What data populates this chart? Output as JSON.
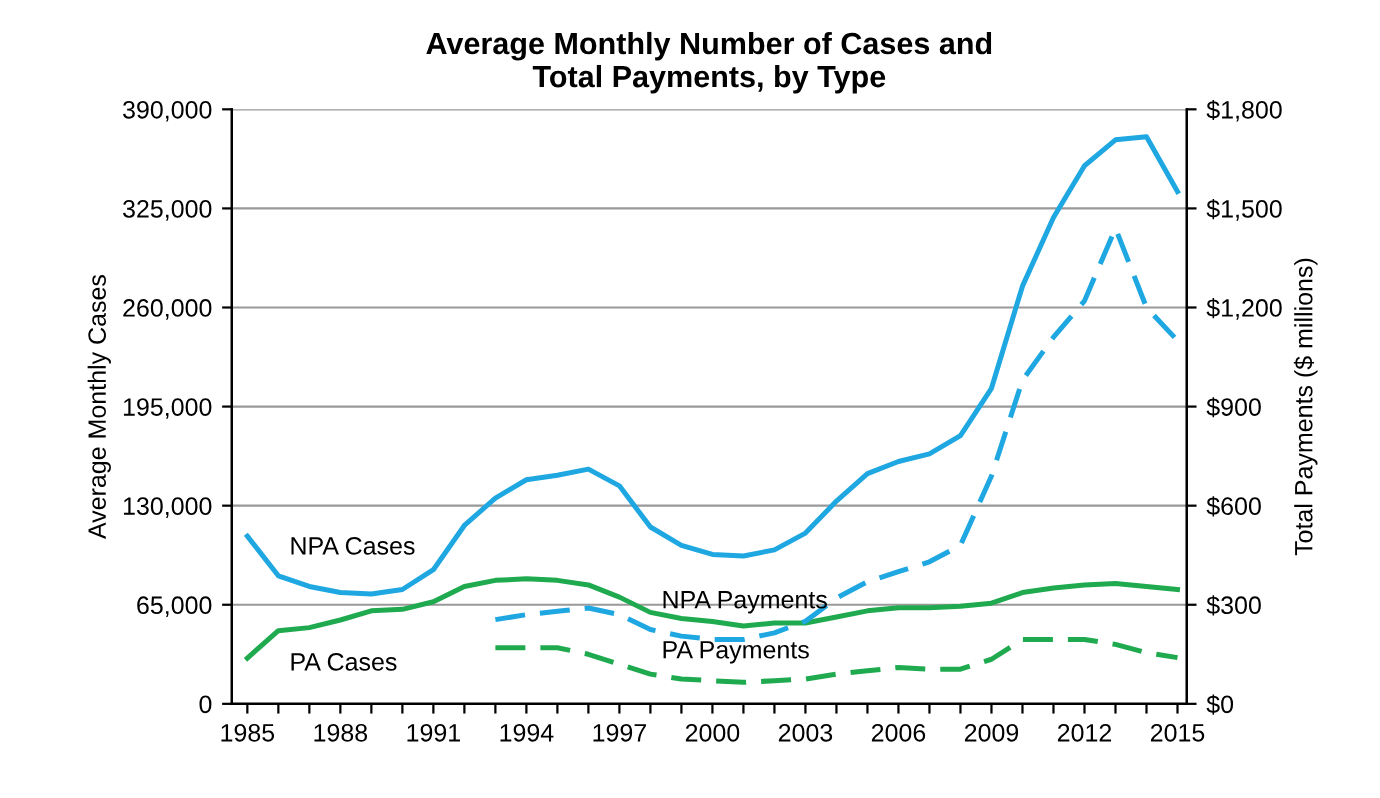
{
  "chart_data": {
    "type": "line",
    "title": "Average Monthly Number of Cases and\nTotal Payments, by Type",
    "ylabel": "Average Monthly Cases",
    "y2label": "Total Payments ($ millions)",
    "x": [
      1985,
      1986,
      1987,
      1988,
      1989,
      1990,
      1991,
      1992,
      1993,
      1994,
      1995,
      1996,
      1997,
      1998,
      1999,
      2000,
      2001,
      2002,
      2003,
      2004,
      2005,
      2006,
      2007,
      2008,
      2009,
      2010,
      2011,
      2012,
      2013,
      2014,
      2015
    ],
    "series": [
      {
        "name": "NPA Cases",
        "color": "#1ea7e1",
        "line_style": "solid",
        "values": [
          110000,
          84000,
          77000,
          73000,
          72000,
          75000,
          88000,
          117000,
          135000,
          147000,
          150000,
          154000,
          143000,
          116000,
          104000,
          98000,
          97000,
          101000,
          112000,
          133000,
          151000,
          159000,
          164000,
          176000,
          207000,
          274000,
          319000,
          353000,
          370000,
          372000,
          336000
        ]
      },
      {
        "name": "PA Cases",
        "color": "#1faa4f",
        "line_style": "solid",
        "values": [
          30000,
          48000,
          50000,
          55000,
          61000,
          62000,
          67000,
          77000,
          81000,
          82000,
          81000,
          78000,
          70000,
          60000,
          56000,
          54000,
          51000,
          53000,
          53000,
          57000,
          61000,
          63000,
          63000,
          64000,
          66000,
          73000,
          76000,
          78000,
          79000,
          77000,
          75000
        ]
      },
      {
        "name": "NPA Payments",
        "color": "#1ea7e1",
        "line_style": "dashed",
        "axis": "y2",
        "values": [
          null,
          null,
          null,
          null,
          null,
          null,
          null,
          null,
          255,
          270,
          280,
          290,
          270,
          225,
          205,
          195,
          195,
          215,
          250,
          320,
          370,
          400,
          430,
          480,
          690,
          980,
          1110,
          1220,
          1440,
          1200,
          1100
        ]
      },
      {
        "name": "PA Payments",
        "color": "#1faa4f",
        "line_style": "dashed",
        "axis": "y2",
        "values": [
          null,
          null,
          null,
          null,
          null,
          null,
          null,
          null,
          170,
          170,
          170,
          150,
          120,
          90,
          75,
          70,
          65,
          70,
          75,
          90,
          100,
          110,
          105,
          105,
          135,
          195,
          195,
          195,
          180,
          155,
          140
        ]
      }
    ],
    "xlim": [
      1984.5,
      2015.3
    ],
    "xticks": [
      1985,
      {
        "value": 1986,
        "label": null
      },
      {
        "value": 1987,
        "label": null
      },
      1988,
      {
        "value": 1989,
        "label": null
      },
      {
        "value": 1990,
        "label": null
      },
      1991,
      {
        "value": 1992,
        "label": null
      },
      {
        "value": 1993,
        "label": null
      },
      1994,
      {
        "value": 1995,
        "label": null
      },
      {
        "value": 1996,
        "label": null
      },
      1997,
      {
        "value": 1998,
        "label": null
      },
      {
        "value": 1999,
        "label": null
      },
      2000,
      {
        "value": 2001,
        "label": null
      },
      {
        "value": 2002,
        "label": null
      },
      2003,
      {
        "value": 2004,
        "label": null
      },
      {
        "value": 2005,
        "label": null
      },
      2006,
      {
        "value": 2007,
        "label": null
      },
      {
        "value": 2008,
        "label": null
      },
      2009,
      {
        "value": 2010,
        "label": null
      },
      {
        "value": 2011,
        "label": null
      },
      2012,
      {
        "value": 2013,
        "label": null
      },
      {
        "value": 2014,
        "label": null
      },
      2015
    ],
    "ylim": [
      0,
      390000
    ],
    "yticks": [
      {
        "value": 0,
        "label": "0"
      },
      {
        "value": 65000,
        "label": "65,000"
      },
      {
        "value": 130000,
        "label": "130,000"
      },
      {
        "value": 195000,
        "label": "195,000"
      },
      {
        "value": 260000,
        "label": "260,000"
      },
      {
        "value": 325000,
        "label": "325,000"
      },
      {
        "value": 390000,
        "label": "390,000"
      }
    ],
    "y2lim": [
      0,
      1800
    ],
    "y2ticks": [
      {
        "value": 0,
        "label": "$0"
      },
      {
        "value": 300,
        "label": "$300"
      },
      {
        "value": 600,
        "label": "$600"
      },
      {
        "value": 900,
        "label": "$900"
      },
      {
        "value": 1200,
        "label": "$1,200"
      },
      {
        "value": 1500,
        "label": "$1,500"
      },
      {
        "value": 1800,
        "label": "$1,800"
      }
    ],
    "grid": "y",
    "legend": false,
    "marker": "none"
  }
}
